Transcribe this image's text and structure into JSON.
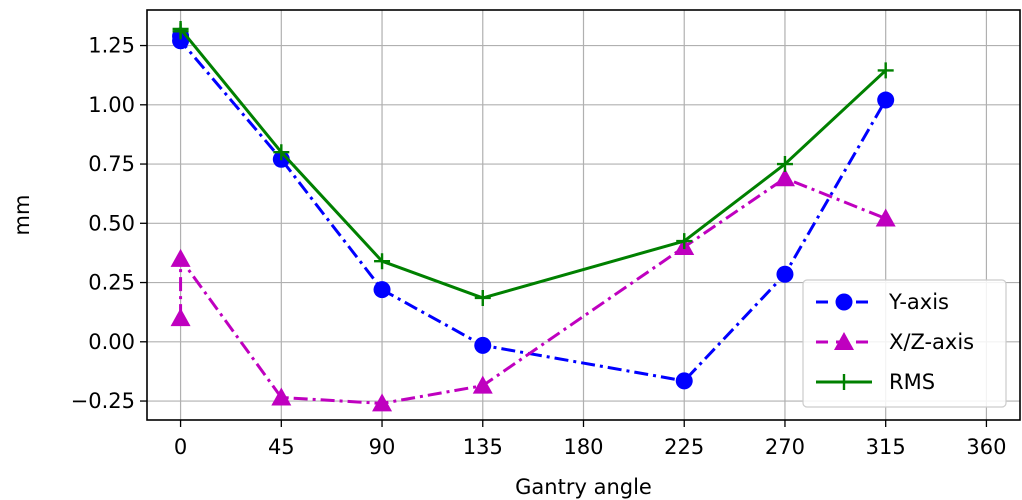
{
  "chart_data": {
    "type": "line",
    "title": "",
    "xlabel": "Gantry angle",
    "ylabel": "mm",
    "xlim": [
      -15,
      375
    ],
    "ylim": [
      -0.33,
      1.4
    ],
    "xticks": [
      0,
      45,
      90,
      135,
      180,
      225,
      270,
      315,
      360
    ],
    "xtick_labels": [
      "0",
      "45",
      "90",
      "135",
      "180",
      "225",
      "270",
      "315",
      "360"
    ],
    "yticks": [
      -0.25,
      0.0,
      0.25,
      0.5,
      0.75,
      1.0,
      1.25
    ],
    "ytick_labels": [
      "−0.25",
      "0.00",
      "0.25",
      "0.50",
      "0.75",
      "1.00",
      "1.25"
    ],
    "grid": true,
    "legend_position": "lower right",
    "series": [
      {
        "name": "Y-axis",
        "color": "#0000ff",
        "line_style": "dashdot",
        "marker": "circle",
        "x": [
          0,
          0,
          45,
          90,
          135,
          225,
          270,
          315
        ],
        "y": [
          1.29,
          1.27,
          0.77,
          0.22,
          -0.015,
          -0.165,
          0.285,
          1.02
        ]
      },
      {
        "name": "X/Z-axis",
        "color": "#bf00bf",
        "line_style": "dashdot",
        "marker": "triangle",
        "x": [
          0,
          0,
          45,
          90,
          135,
          225,
          270,
          315
        ],
        "y": [
          0.1,
          0.35,
          -0.235,
          -0.26,
          -0.185,
          0.4,
          0.69,
          0.52
        ]
      },
      {
        "name": "RMS",
        "color": "#008000",
        "line_style": "solid",
        "marker": "plus",
        "x": [
          0,
          0,
          45,
          90,
          135,
          225,
          270,
          315
        ],
        "y": [
          1.31,
          1.32,
          0.8,
          0.34,
          0.185,
          0.425,
          0.75,
          1.145
        ]
      }
    ]
  }
}
